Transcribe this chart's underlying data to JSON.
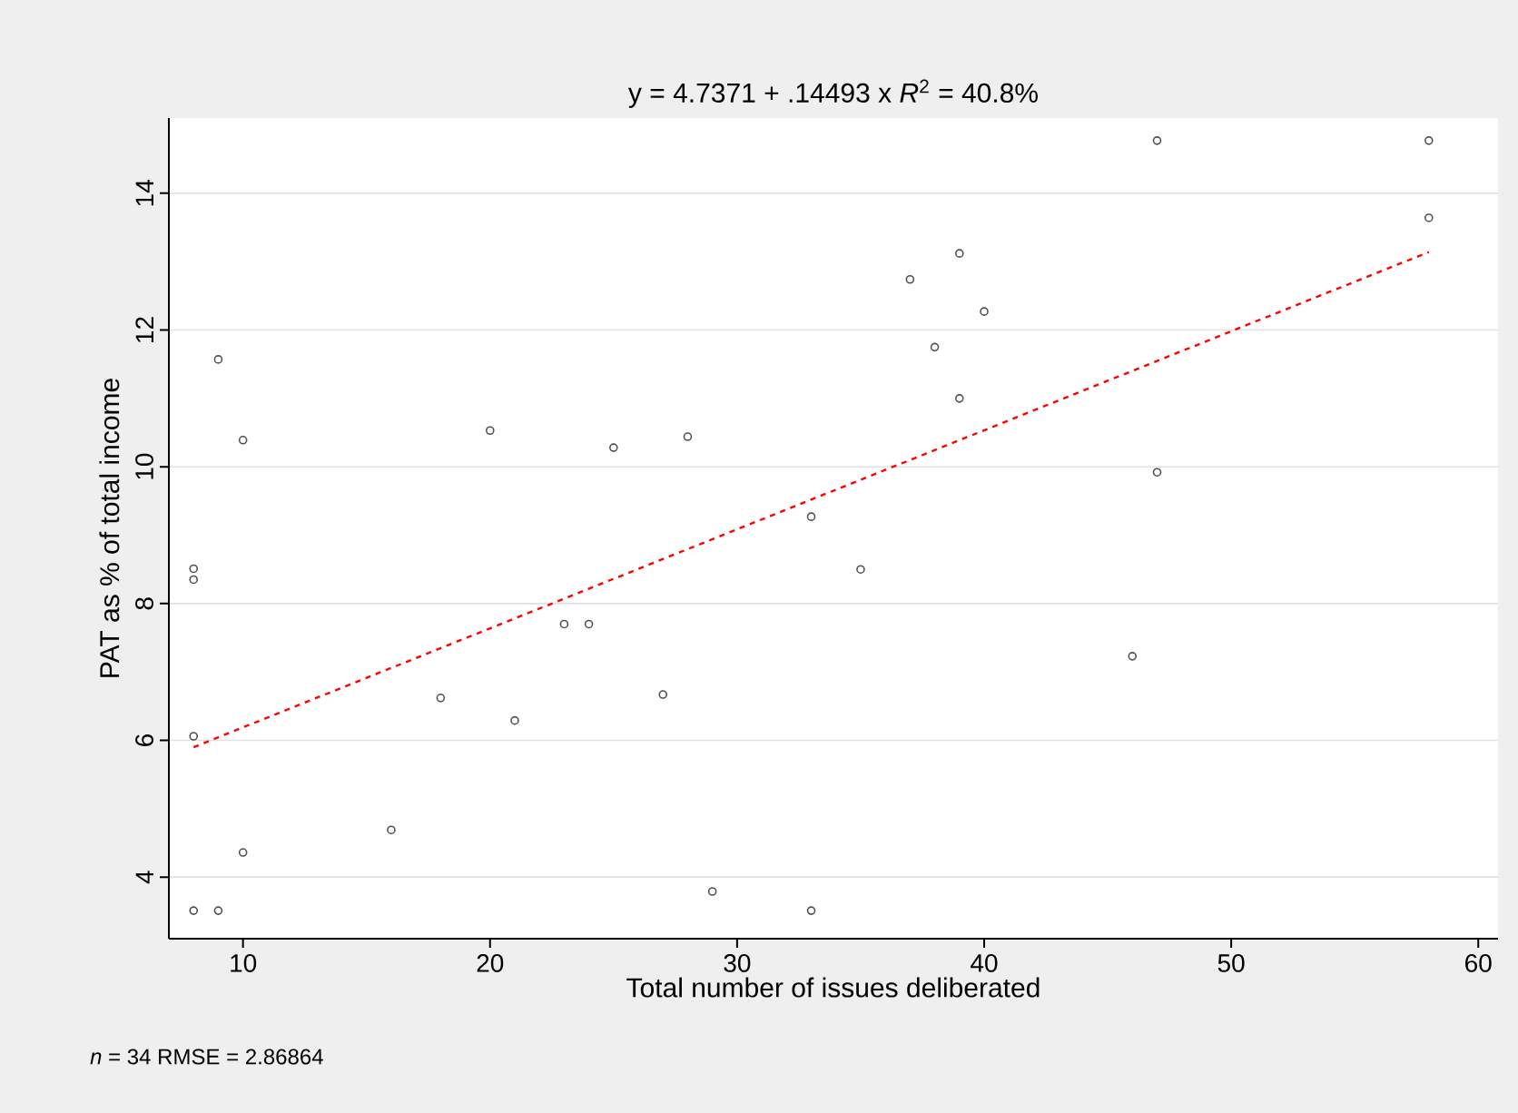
{
  "chart_data": {
    "type": "scatter",
    "title": "y = 4.7371 + .14493 x    *R*$^{2}$ = 40.8%",
    "xlabel": "Total number of issues deliberated",
    "ylabel": "PAT as % of total income",
    "annotations": [
      "*n* = 34    RMSE =  2.86864"
    ],
    "xlim": [
      7,
      60.8
    ],
    "ylim": [
      3.1,
      15.1
    ],
    "xticks": [
      10,
      20,
      30,
      40,
      50,
      60
    ],
    "yticks": [
      4,
      6,
      8,
      10,
      12,
      14
    ],
    "grid": "y",
    "series": [
      {
        "color": "#505050",
        "marker": "circle",
        "x": [
          9,
          10,
          20,
          25,
          28,
          33,
          8,
          8,
          47,
          58,
          58,
          39,
          37,
          40,
          38,
          39,
          47,
          35,
          8,
          23,
          24,
          18,
          21,
          27,
          16,
          10,
          8,
          9,
          29,
          33,
          46
        ],
        "values": [
          11.57,
          10.39,
          10.53,
          10.28,
          10.44,
          9.27,
          8.51,
          8.35,
          14.77,
          14.77,
          13.64,
          13.12,
          12.74,
          12.27,
          11.75,
          11.0,
          9.92,
          8.5,
          6.06,
          7.7,
          7.7,
          6.62,
          6.29,
          6.67,
          4.69,
          4.36,
          3.51,
          3.51,
          3.79,
          3.51,
          7.23
        ]
      },
      {
        "type": "line",
        "color": "#ff0000",
        "line_style": "dashed",
        "marker": "none",
        "x": [
          8,
          58
        ],
        "values": [
          5.9,
          13.14
        ]
      }
    ]
  }
}
